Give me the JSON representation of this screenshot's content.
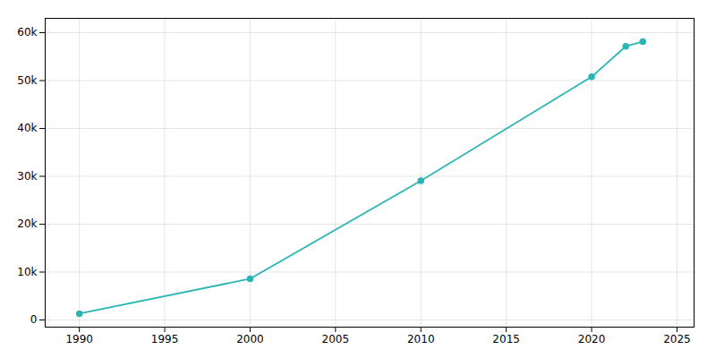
{
  "chart_data": {
    "type": "line",
    "x": [
      1990,
      2000,
      2010,
      2020,
      2022,
      2023
    ],
    "values": [
      1326,
      8600,
      29085,
      50788,
      57166,
      58118
    ],
    "color": "#2ab5b5",
    "marker": "circle",
    "xlim": [
      1988,
      2026
    ],
    "ylim": [
      -1500,
      63000
    ],
    "xticks": [
      1990,
      1995,
      2000,
      2005,
      2010,
      2015,
      2020,
      2025
    ],
    "yticks": [
      0,
      {
        "value": 10000,
        "label": "10k"
      },
      {
        "value": 20000,
        "label": "20k"
      },
      {
        "value": 30000,
        "label": "30k"
      },
      {
        "value": 40000,
        "label": "40k"
      },
      {
        "value": 50000,
        "label": "50k"
      },
      {
        "value": 60000,
        "label": "60k"
      }
    ],
    "grid": true
  }
}
